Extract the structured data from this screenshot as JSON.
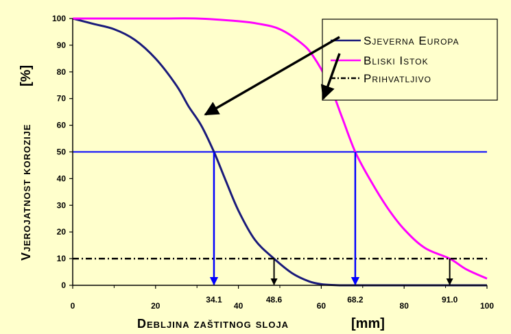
{
  "chart_data": {
    "type": "line",
    "xlabel": "Debljina zaštitnog sloja",
    "xunit": "[mm]",
    "ylabel": "Vjerojatnost korozije",
    "yunit": "[%]",
    "xlim": [
      0,
      100
    ],
    "ylim": [
      0,
      100
    ],
    "x_ticks": [
      "0",
      "20",
      "40",
      "60",
      "80",
      "100"
    ],
    "y_ticks": [
      "0",
      "10",
      "20",
      "30",
      "40",
      "50",
      "60",
      "70",
      "80",
      "90",
      "100"
    ],
    "marked_x_labels": [
      "34.1",
      "48.6",
      "68.2",
      "91.0"
    ],
    "grid": false,
    "legend_position": "top-right",
    "series": [
      {
        "name": "Sjeverna Europa",
        "color": "#1a1a7a",
        "x": [
          0,
          5,
          10,
          15,
          20,
          25,
          28,
          31,
          34.1,
          37,
          40,
          44,
          48.6,
          53,
          57,
          60,
          63,
          65,
          70,
          80,
          90,
          100
        ],
        "y": [
          100,
          98,
          96,
          92,
          85,
          75,
          67,
          60,
          50,
          39,
          28,
          17,
          10,
          4.5,
          1.5,
          0.4,
          0.1,
          0,
          0,
          0,
          0,
          0
        ]
      },
      {
        "name": "Bliski Istok",
        "color": "#ff00ff",
        "x": [
          0,
          20,
          30,
          40,
          45,
          50,
          55,
          58,
          62,
          65,
          68.2,
          72,
          76,
          80,
          85,
          91,
          95,
          100
        ],
        "y": [
          100,
          100,
          100,
          99,
          98,
          96,
          91,
          86,
          75,
          63,
          50,
          39,
          29,
          21,
          14,
          10,
          6,
          2.5
        ]
      },
      {
        "name": "Prihvatljivo",
        "color": "#000000",
        "style": "dash-dot",
        "x": [
          0,
          100
        ],
        "y": [
          10,
          10
        ]
      }
    ],
    "reference_lines": [
      {
        "type": "horizontal",
        "y": 50,
        "color": "#0000ff"
      }
    ],
    "drop_lines": [
      {
        "x": 34.1,
        "from_y": 50,
        "color": "#0000ff"
      },
      {
        "x": 68.2,
        "from_y": 50,
        "color": "#0000ff"
      },
      {
        "x": 48.6,
        "from_y": 10,
        "color": "#000000"
      },
      {
        "x": 91.0,
        "from_y": 10,
        "color": "#000000"
      }
    ],
    "annotations": [
      {
        "type": "arrow",
        "from_legend": "Sjeverna Europa",
        "to": [
          32,
          64
        ]
      },
      {
        "type": "arrow",
        "from_legend": "Bliski Istok",
        "to": [
          60.5,
          70
        ]
      }
    ]
  }
}
